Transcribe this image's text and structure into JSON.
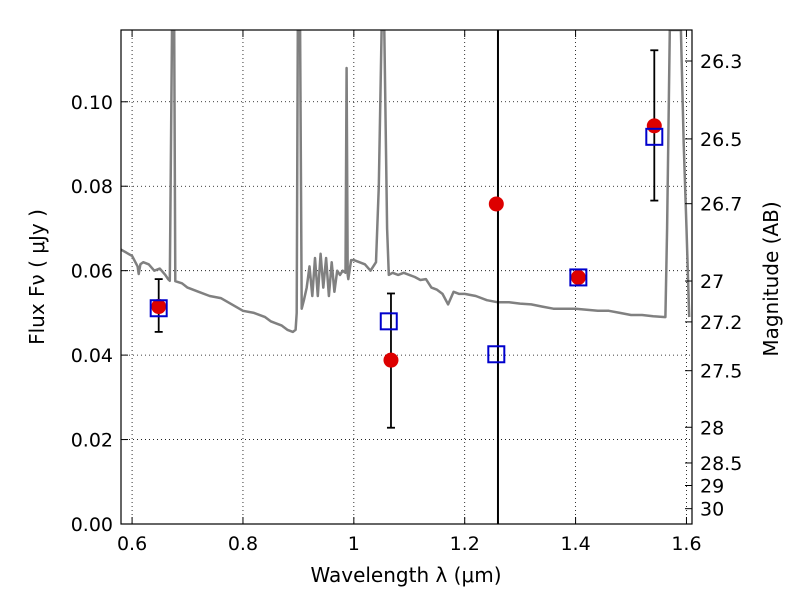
{
  "chart_data": {
    "type": "scatter",
    "xlabel": "Wavelength  λ (μm)",
    "ylabel": "Flux  Fν  ( μJy )",
    "ylabel_right": "Magnitude (AB)",
    "xlim": [
      0.58,
      1.61
    ],
    "ylim": [
      0.0,
      0.117
    ],
    "grid": true,
    "x_ticks": [
      {
        "v": 0.6,
        "label": "0.6"
      },
      {
        "v": 0.8,
        "label": "0.8"
      },
      {
        "v": 1.0,
        "label": "1"
      },
      {
        "v": 1.2,
        "label": "1.2"
      },
      {
        "v": 1.4,
        "label": "1.4"
      },
      {
        "v": 1.6,
        "label": "1.6"
      }
    ],
    "y_ticks": [
      {
        "v": 0.0,
        "label": "0.00"
      },
      {
        "v": 0.02,
        "label": "0.02"
      },
      {
        "v": 0.04,
        "label": "0.04"
      },
      {
        "v": 0.06,
        "label": "0.06"
      },
      {
        "v": 0.08,
        "label": "0.08"
      },
      {
        "v": 0.1,
        "label": "0.10"
      }
    ],
    "mag_ticks": [
      {
        "v": 26.3,
        "label": "26.3"
      },
      {
        "v": 26.5,
        "label": "26.5"
      },
      {
        "v": 26.7,
        "label": "26.7"
      },
      {
        "v": 27.0,
        "label": "27"
      },
      {
        "v": 27.2,
        "label": "27.2"
      },
      {
        "v": 27.5,
        "label": "27.5"
      },
      {
        "v": 28.0,
        "label": "28"
      },
      {
        "v": 28.5,
        "label": "28.5"
      },
      {
        "v": 29.0,
        "label": "29"
      },
      {
        "v": 30.0,
        "label": "30"
      }
    ],
    "vertical_line_x": 1.26,
    "observed": [
      {
        "x": 0.648,
        "y": 0.0515,
        "err": [
          0.0455,
          0.058
        ],
        "color": "#dd0000"
      },
      {
        "x": 1.067,
        "y": 0.0388,
        "err": [
          0.0228,
          0.0546
        ],
        "color": "#dd0000"
      },
      {
        "x": 1.257,
        "y": 0.0758,
        "err": null,
        "color": "#dd0000"
      },
      {
        "x": 1.405,
        "y": 0.0584,
        "err": null,
        "color": "#dd0000"
      },
      {
        "x": 1.542,
        "y": 0.0943,
        "err": [
          0.0766,
          0.1122
        ],
        "color": "#dd0000"
      }
    ],
    "model": [
      {
        "x": 0.648,
        "y": 0.0511,
        "color": "#0000cc"
      },
      {
        "x": 1.063,
        "y": 0.048,
        "color": "#0000cc"
      },
      {
        "x": 1.257,
        "y": 0.0402,
        "color": "#0000cc"
      },
      {
        "x": 1.405,
        "y": 0.0584,
        "color": "#0000cc"
      },
      {
        "x": 1.542,
        "y": 0.0917,
        "color": "#0000cc"
      }
    ],
    "spectrum": [
      [
        0.58,
        0.065
      ],
      [
        0.6,
        0.0635
      ],
      [
        0.61,
        0.061
      ],
      [
        0.612,
        0.0592
      ],
      [
        0.615,
        0.0615
      ],
      [
        0.62,
        0.062
      ],
      [
        0.63,
        0.0615
      ],
      [
        0.64,
        0.06
      ],
      [
        0.65,
        0.0605
      ],
      [
        0.66,
        0.059
      ],
      [
        0.665,
        0.058
      ],
      [
        0.668,
        0.0576
      ],
      [
        0.672,
        0.117
      ],
      [
        0.676,
        0.117
      ],
      [
        0.678,
        0.0575
      ],
      [
        0.69,
        0.057
      ],
      [
        0.7,
        0.056
      ],
      [
        0.72,
        0.055
      ],
      [
        0.74,
        0.054
      ],
      [
        0.76,
        0.0535
      ],
      [
        0.78,
        0.052
      ],
      [
        0.8,
        0.0505
      ],
      [
        0.82,
        0.05
      ],
      [
        0.84,
        0.049
      ],
      [
        0.85,
        0.048
      ],
      [
        0.86,
        0.0475
      ],
      [
        0.87,
        0.047
      ],
      [
        0.88,
        0.046
      ],
      [
        0.89,
        0.0455
      ],
      [
        0.895,
        0.046
      ],
      [
        0.897,
        0.05
      ],
      [
        0.899,
        0.117
      ],
      [
        0.903,
        0.117
      ],
      [
        0.906,
        0.051
      ],
      [
        0.91,
        0.053
      ],
      [
        0.915,
        0.056
      ],
      [
        0.92,
        0.061
      ],
      [
        0.925,
        0.054
      ],
      [
        0.93,
        0.063
      ],
      [
        0.935,
        0.054
      ],
      [
        0.94,
        0.064
      ],
      [
        0.945,
        0.056
      ],
      [
        0.95,
        0.063
      ],
      [
        0.955,
        0.054
      ],
      [
        0.96,
        0.062
      ],
      [
        0.965,
        0.055
      ],
      [
        0.97,
        0.06
      ],
      [
        0.975,
        0.059
      ],
      [
        0.98,
        0.06
      ],
      [
        0.985,
        0.0595
      ],
      [
        0.987,
        0.108
      ],
      [
        0.989,
        0.059
      ],
      [
        0.99,
        0.058
      ],
      [
        0.995,
        0.0625
      ],
      [
        1.0,
        0.0625
      ],
      [
        1.01,
        0.062
      ],
      [
        1.02,
        0.0615
      ],
      [
        1.03,
        0.06
      ],
      [
        1.04,
        0.062
      ],
      [
        1.045,
        0.08
      ],
      [
        1.05,
        0.117
      ],
      [
        1.055,
        0.117
      ],
      [
        1.06,
        0.07
      ],
      [
        1.063,
        0.059
      ],
      [
        1.07,
        0.0595
      ],
      [
        1.08,
        0.059
      ],
      [
        1.09,
        0.0595
      ],
      [
        1.1,
        0.059
      ],
      [
        1.11,
        0.0585
      ],
      [
        1.12,
        0.0578
      ],
      [
        1.13,
        0.058
      ],
      [
        1.14,
        0.056
      ],
      [
        1.15,
        0.0555
      ],
      [
        1.16,
        0.0545
      ],
      [
        1.17,
        0.052
      ],
      [
        1.18,
        0.055
      ],
      [
        1.19,
        0.0545
      ],
      [
        1.2,
        0.0545
      ],
      [
        1.22,
        0.054
      ],
      [
        1.24,
        0.053
      ],
      [
        1.26,
        0.0525
      ],
      [
        1.28,
        0.0525
      ],
      [
        1.3,
        0.0522
      ],
      [
        1.32,
        0.052
      ],
      [
        1.34,
        0.0515
      ],
      [
        1.36,
        0.051
      ],
      [
        1.4,
        0.051
      ],
      [
        1.44,
        0.0505
      ],
      [
        1.46,
        0.0505
      ],
      [
        1.48,
        0.05
      ],
      [
        1.5,
        0.0495
      ],
      [
        1.52,
        0.0495
      ],
      [
        1.54,
        0.0492
      ],
      [
        1.562,
        0.049
      ],
      [
        1.565,
        0.07
      ],
      [
        1.57,
        0.117
      ],
      [
        1.59,
        0.117
      ],
      [
        1.595,
        0.09
      ],
      [
        1.6,
        0.07
      ],
      [
        1.605,
        0.049
      ]
    ]
  }
}
